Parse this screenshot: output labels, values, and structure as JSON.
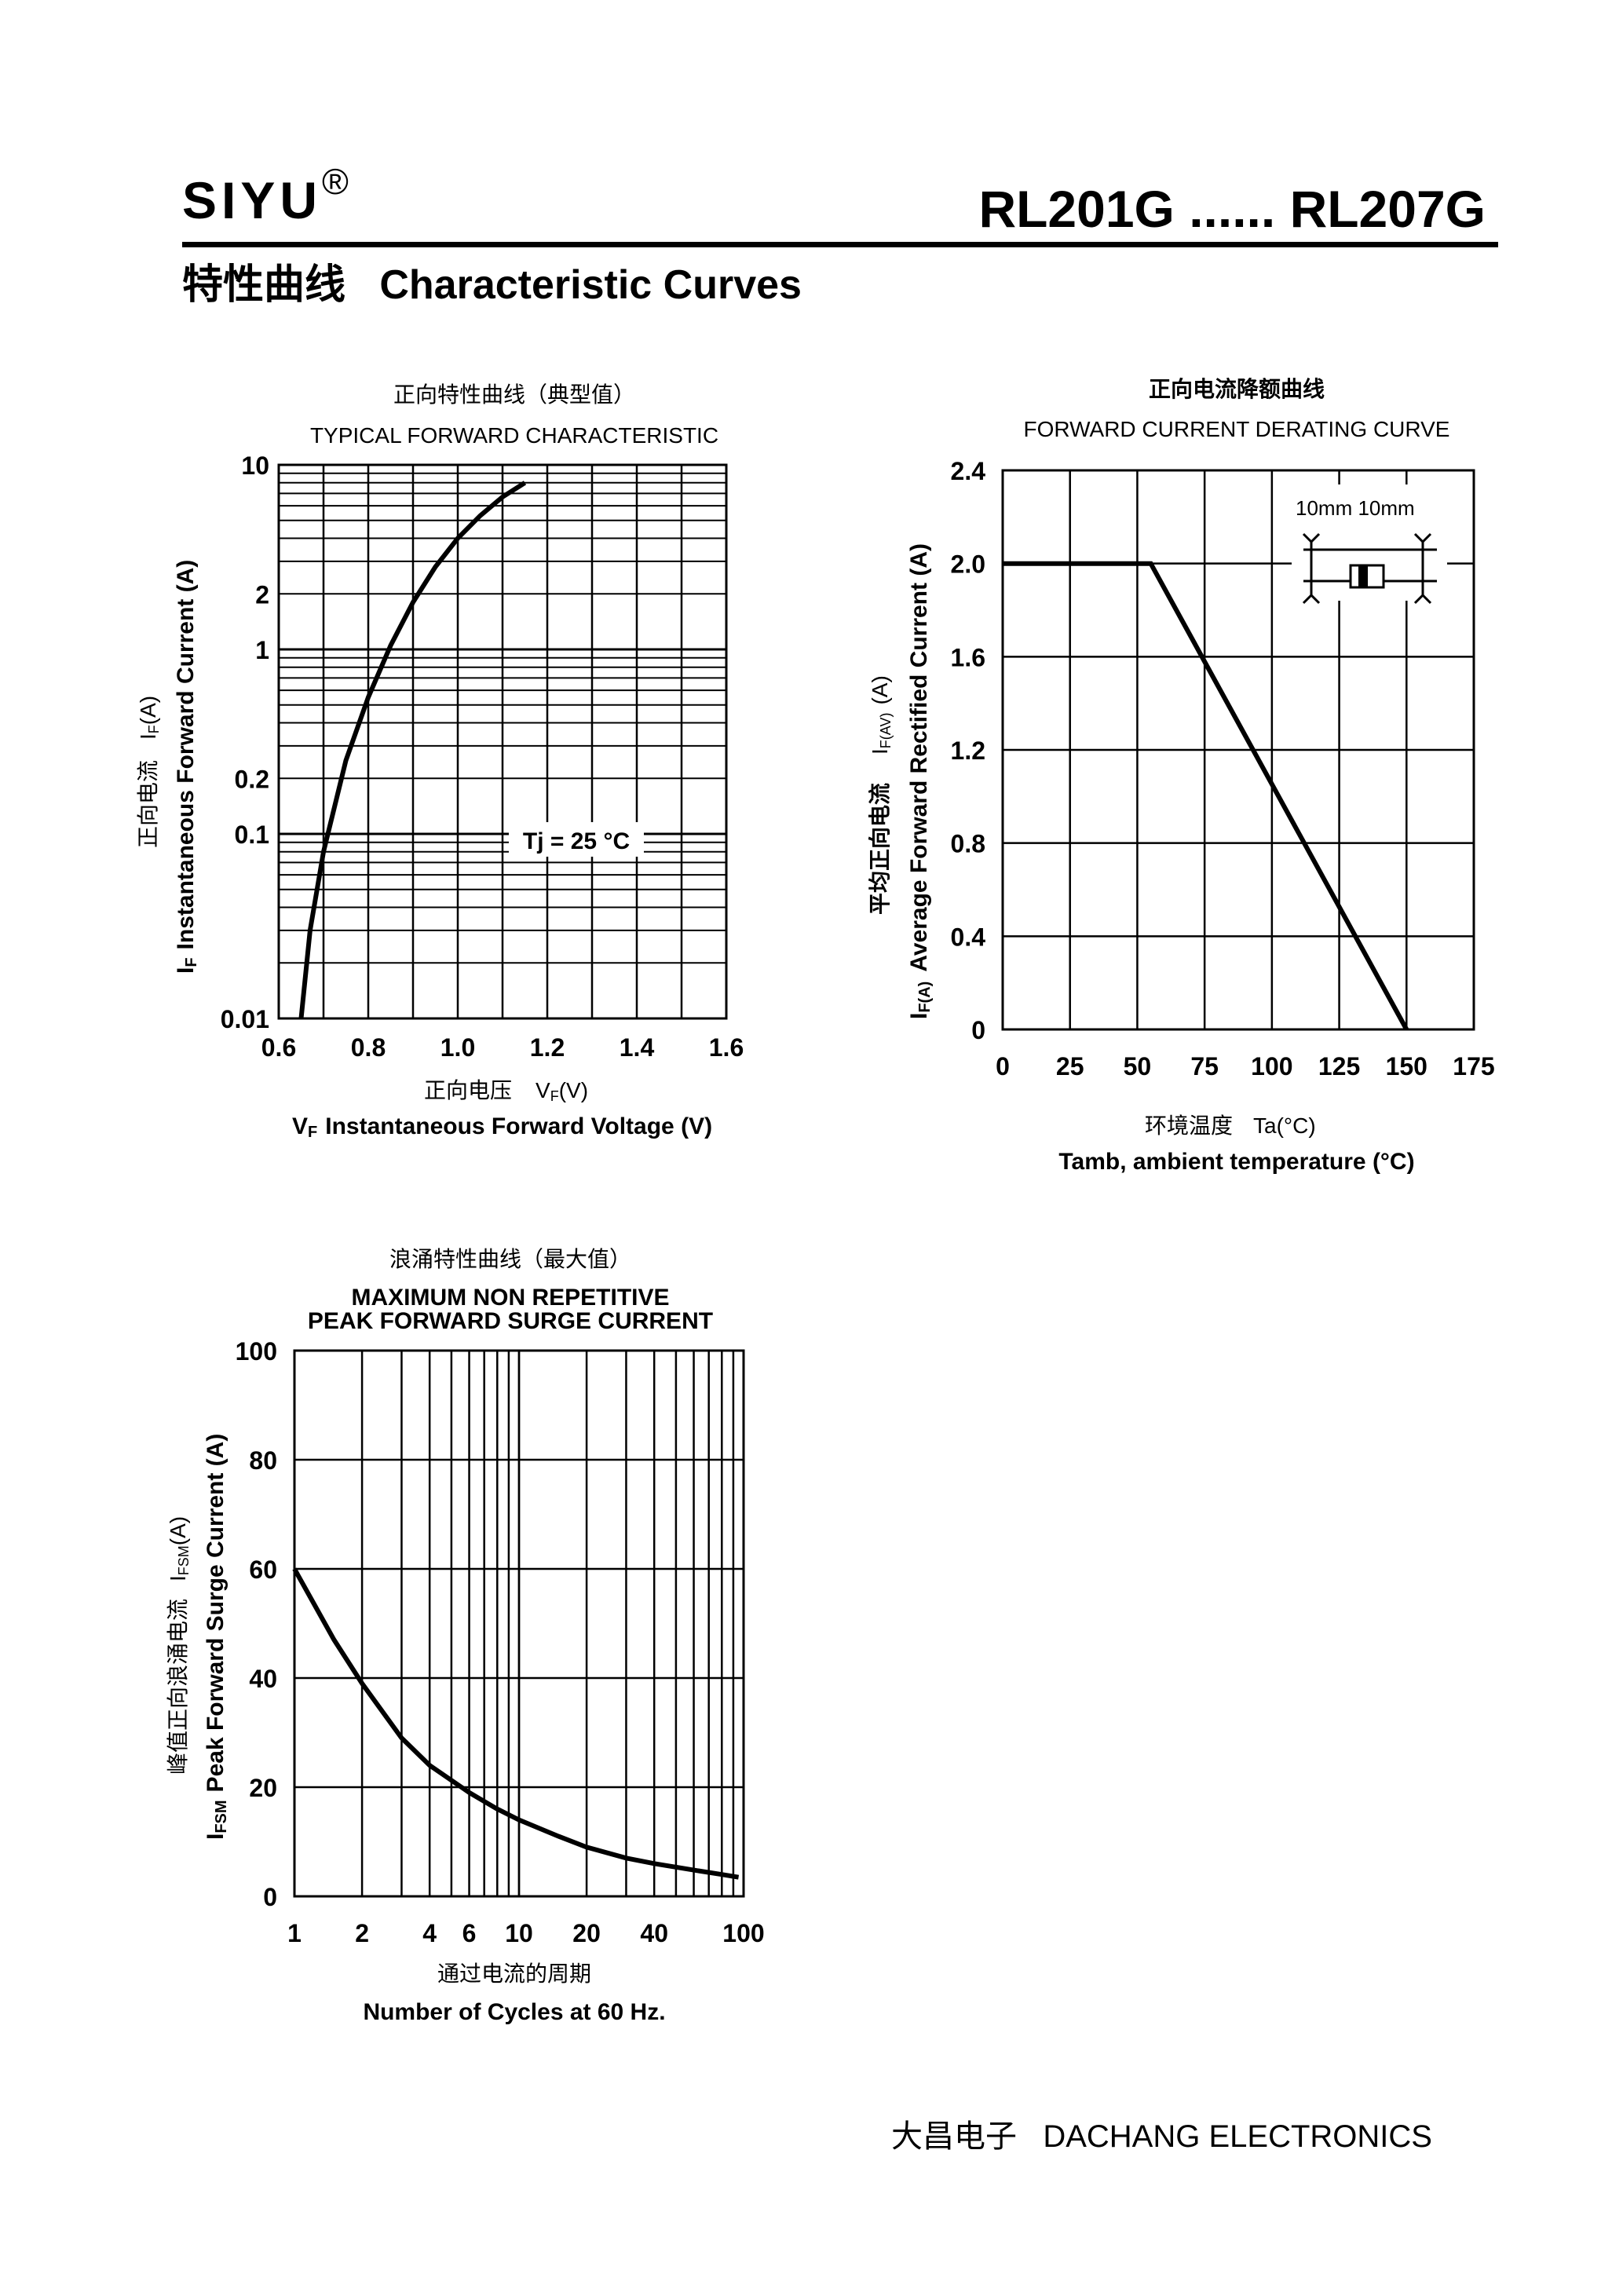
{
  "header": {
    "brand": "SIYU",
    "registered": "®",
    "part_range": "RL201G ...... RL207G",
    "section_cn": "特性曲线",
    "section_en": "Characteristic Curves"
  },
  "footer": {
    "cn": "大昌电子",
    "en": "DACHANG ELECTRONICS"
  },
  "chart_data": [
    {
      "type": "line",
      "title_cn": "正向特性曲线（典型值）",
      "title": "TYPICAL FORWARD CHARACTERISTIC",
      "xlabel_cn": "正向电压",
      "xlabel_sym": "V",
      "xlabel_sub": "F",
      "xlabel_unit": "(V)",
      "xlabel_en_sym": "V",
      "xlabel_en_sub": "F",
      "xlabel_en": "Instantaneous Forward Voltage (V)",
      "ylabel_cn": "正向电流",
      "ylabel_sym": "I",
      "ylabel_sub": "F",
      "ylabel_unit": "(A)",
      "ylabel_en_sym": "I",
      "ylabel_en_sub": "F",
      "ylabel_en": "Instantaneous Forward Current (A)",
      "xlim": [
        0.6,
        1.6
      ],
      "ylim": [
        0.01,
        10
      ],
      "yscale": "log",
      "grid": true,
      "x_ticks": [
        "0.6",
        "0.8",
        "1.0",
        "1.2",
        "1.4",
        "1.6"
      ],
      "y_ticks": [
        {
          "value": 10,
          "label": "10"
        },
        {
          "value": 2,
          "label": "2"
        },
        {
          "value": 1,
          "label": "1"
        },
        {
          "value": 0.2,
          "label": "0.2"
        },
        {
          "value": 0.1,
          "label": "0.1"
        },
        {
          "value": 0.01,
          "label": "0.01"
        }
      ],
      "annotation": "Tj = 25 °C",
      "series": [
        {
          "x": [
            0.65,
            0.67,
            0.7,
            0.75,
            0.8,
            0.85,
            0.9,
            0.95,
            1.0,
            1.05,
            1.1,
            1.15
          ],
          "y": [
            0.01,
            0.03,
            0.08,
            0.25,
            0.55,
            1.05,
            1.8,
            2.8,
            4.0,
            5.3,
            6.7,
            8.0
          ]
        }
      ]
    },
    {
      "type": "line",
      "title_cn": "正向电流降额曲线",
      "title": "FORWARD CURRENT DERATING CURVE",
      "xlabel_cn": "环境温度",
      "xlabel_sym": "Ta",
      "xlabel_unit": "(°C)",
      "xlabel_en": "Tamb, ambient temperature (°C)",
      "ylabel_cn": "平均正向电流",
      "ylabel_sym": "I",
      "ylabel_sub": "F(AV)",
      "ylabel_unit": "(A)",
      "ylabel_en_sym": "I",
      "ylabel_en_sub": "F(A)",
      "ylabel_en": "Average Forward Rectified Current (A)",
      "xlim": [
        0,
        175
      ],
      "ylim": [
        0,
        2.4
      ],
      "grid": true,
      "x_ticks": [
        "0",
        "25",
        "50",
        "75",
        "100",
        "125",
        "150",
        "175"
      ],
      "y_ticks": [
        "0",
        "0.4",
        "0.8",
        "1.2",
        "1.6",
        "2.0",
        "2.4"
      ],
      "inset_label": "10mm  10mm",
      "series": [
        {
          "x": [
            0,
            55,
            150
          ],
          "y": [
            2.0,
            2.0,
            0
          ]
        }
      ]
    },
    {
      "type": "line",
      "title_cn": "浪涌特性曲线（最大值）",
      "title_line1": "MAXIMUM NON REPETITIVE",
      "title_line2": "PEAK FORWARD SURGE CURRENT",
      "xlabel_cn": "通过电流的周期",
      "xlabel_en": "Number  of  Cycles at 60 Hz.",
      "ylabel_cn": "峰值正向浪涌电流",
      "ylabel_sym": "I",
      "ylabel_sub": "FSM",
      "ylabel_unit": "(A)",
      "ylabel_en_sym": "I",
      "ylabel_en_sub": "FSM",
      "ylabel_en": "Peak Forward Surge Current (A)",
      "xlim": [
        1,
        100
      ],
      "xscale": "log",
      "ylim": [
        0,
        100
      ],
      "grid": true,
      "x_ticks": [
        {
          "value": 1,
          "label": "1"
        },
        {
          "value": 2,
          "label": "2"
        },
        {
          "value": 4,
          "label": "4"
        },
        {
          "value": 6,
          "label": "6"
        },
        {
          "value": 10,
          "label": "10"
        },
        {
          "value": 20,
          "label": "20"
        },
        {
          "value": 40,
          "label": "40"
        },
        {
          "value": 100,
          "label": "100"
        }
      ],
      "y_ticks": [
        "0",
        "20",
        "40",
        "60",
        "80",
        "100"
      ],
      "series": [
        {
          "x": [
            1,
            1.5,
            2,
            3,
            4,
            6,
            8,
            10,
            15,
            20,
            30,
            40,
            60,
            80,
            95
          ],
          "y": [
            60,
            47,
            39,
            29,
            24,
            19,
            16,
            14,
            11,
            9,
            7,
            6,
            4.8,
            4,
            3.5
          ]
        }
      ]
    }
  ]
}
